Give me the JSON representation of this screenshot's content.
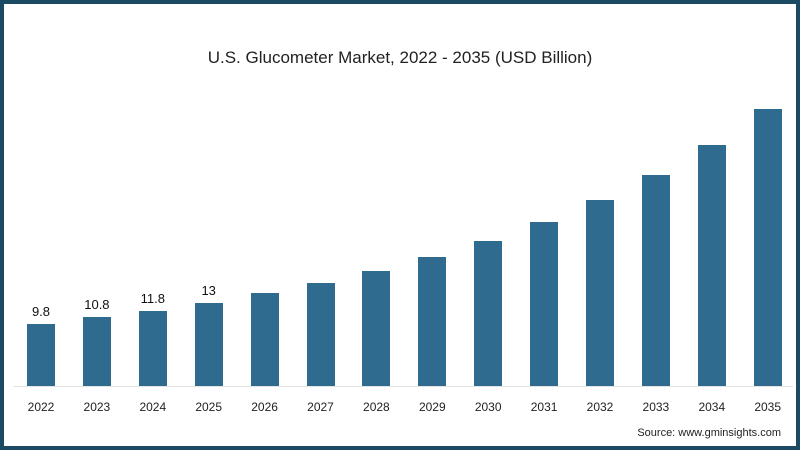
{
  "chart_data": {
    "type": "bar",
    "title": "U.S. Glucometer Market, 2022 - 2035 (USD Billion)",
    "xlabel": "",
    "ylabel": "",
    "categories": [
      "2022",
      "2023",
      "2024",
      "2025",
      "2026",
      "2027",
      "2028",
      "2029",
      "2030",
      "2031",
      "2032",
      "2033",
      "2034",
      "2035"
    ],
    "values": [
      9.8,
      10.8,
      11.8,
      13,
      14.6,
      16.2,
      18.1,
      20.3,
      22.8,
      25.8,
      29.3,
      33.2,
      38.0,
      43.6
    ],
    "data_labels": [
      "9.8",
      "10.8",
      "11.8",
      "13",
      "",
      "",
      "",
      "",
      "",
      "",
      "",
      "",
      "",
      ""
    ],
    "ylim": [
      0,
      45
    ],
    "grid": false,
    "legend": null,
    "bar_color": "#2f6b8e",
    "source": "Source: www.gminsights.com"
  },
  "frame": {
    "border_color": "#1d4a63"
  }
}
